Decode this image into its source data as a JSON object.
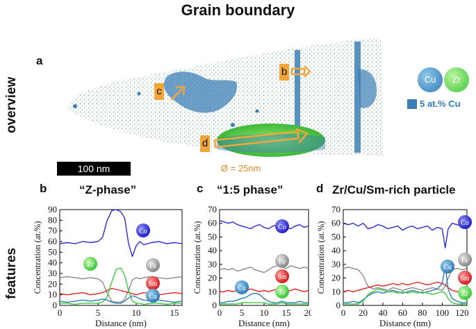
{
  "title": "Grain boundary",
  "row_labels": {
    "overview": "overview",
    "features": "features"
  },
  "overview": {
    "panel_letter": "a",
    "tags": {
      "b": "b",
      "c": "c",
      "d": "d"
    },
    "scale_bar": "100 nm",
    "diameter": "Ø = 25nm",
    "legend": {
      "cu": "Cu",
      "zr": "Zr",
      "iso": "5 at.% Cu"
    },
    "colors": {
      "cu": "#3d7fb5",
      "zr": "#5ed14a",
      "tag": "#f2a53a",
      "arrow": "#f2a53a"
    }
  },
  "panels": [
    {
      "letter": "b",
      "title": "“Z-phase”"
    },
    {
      "letter": "c",
      "title": "“1:5 phase”"
    },
    {
      "letter": "d",
      "title": "Zr/Cu/Sm-rich particle"
    }
  ],
  "chart_data": [
    {
      "type": "line",
      "title": "“Z-phase”",
      "xlabel": "Distance (nm)",
      "ylabel": "Concentration (at.%)",
      "xlim": [
        0,
        16
      ],
      "ylim": [
        0,
        90
      ],
      "xticks": [
        0,
        5,
        10,
        15
      ],
      "yticks": [
        0,
        10,
        20,
        30,
        40,
        50,
        60,
        70,
        80,
        90
      ],
      "series": [
        {
          "name": "Co",
          "color": "#2a2ad9",
          "x": [
            0,
            1,
            2,
            3,
            4,
            5,
            5.6,
            6.2,
            6.8,
            7.4,
            8,
            8.5,
            9,
            9.5,
            10,
            10.5,
            11,
            12,
            13,
            14,
            15,
            16
          ],
          "values": [
            58,
            59,
            58,
            60,
            59,
            60,
            64,
            80,
            89,
            90,
            88,
            82,
            58,
            46,
            56,
            60,
            57,
            59,
            60,
            58,
            59,
            58
          ]
        },
        {
          "name": "Fe",
          "color": "#8a8a8a",
          "x": [
            0,
            1,
            2,
            3,
            4,
            5,
            5.6,
            6.2,
            6.8,
            7.4,
            8,
            8.5,
            9,
            9.5,
            10,
            10.5,
            11,
            12,
            13,
            14,
            15,
            16
          ],
          "values": [
            26,
            27,
            26,
            25,
            26,
            25,
            22,
            12,
            4,
            3,
            3,
            6,
            14,
            24,
            26,
            25,
            26,
            27,
            26,
            25,
            26,
            27
          ]
        },
        {
          "name": "Sm",
          "color": "#e02020",
          "x": [
            0,
            1,
            2,
            3,
            4,
            5,
            5.6,
            6.2,
            6.8,
            7.4,
            8,
            8.5,
            9,
            9.5,
            10,
            10.5,
            11,
            12,
            13,
            14,
            15,
            16
          ],
          "values": [
            11,
            10,
            11,
            12,
            10,
            11,
            12,
            14,
            16,
            15,
            14,
            13,
            12,
            11,
            10,
            11,
            12,
            11,
            10,
            11,
            12,
            11
          ]
        },
        {
          "name": "Zr",
          "color": "#3cc83c",
          "x": [
            0,
            1,
            2,
            3,
            4,
            5,
            5.6,
            6.2,
            6.8,
            7.4,
            8,
            8.5,
            9,
            9.5,
            10,
            10.5,
            11,
            12,
            13,
            14,
            15,
            16
          ],
          "values": [
            2,
            2,
            1,
            2,
            2,
            2,
            3,
            8,
            22,
            34,
            35,
            28,
            14,
            4,
            2,
            2,
            1,
            2,
            2,
            1,
            2,
            2
          ]
        },
        {
          "name": "Cu",
          "color": "#2f7bb8",
          "x": [
            0,
            1,
            2,
            3,
            4,
            5,
            5.6,
            6.2,
            6.8,
            7.4,
            8,
            8.5,
            9,
            9.5,
            10,
            10.5,
            11,
            12,
            13,
            14,
            15,
            16
          ],
          "values": [
            4,
            3,
            4,
            5,
            4,
            5,
            6,
            5,
            3,
            2,
            2,
            4,
            7,
            9,
            8,
            6,
            5,
            4,
            5,
            4,
            3,
            4
          ]
        }
      ],
      "badges": [
        "Co",
        "Zr",
        "Fe",
        "Sm",
        "Cu"
      ]
    },
    {
      "type": "line",
      "title": "“1:5 phase”",
      "xlabel": "Distance (nm)",
      "ylabel": "Concentration (at.%)",
      "xlim": [
        0,
        20
      ],
      "ylim": [
        0,
        70
      ],
      "xticks": [
        0,
        5,
        10,
        15,
        20
      ],
      "yticks": [
        0,
        10,
        20,
        30,
        40,
        50,
        60,
        70
      ],
      "series": [
        {
          "name": "Co",
          "color": "#2a2ad9",
          "x": [
            0,
            1,
            2,
            3,
            4,
            5,
            6,
            7,
            8,
            9,
            10,
            11,
            12,
            13,
            14,
            15,
            16,
            17,
            18,
            19,
            20
          ],
          "values": [
            62,
            61,
            60,
            61,
            59,
            58,
            57,
            56,
            58,
            59,
            57,
            56,
            58,
            59,
            58,
            57,
            56,
            58,
            59,
            57,
            58
          ]
        },
        {
          "name": "Fe",
          "color": "#8a8a8a",
          "x": [
            0,
            1,
            2,
            3,
            4,
            5,
            6,
            7,
            8,
            9,
            10,
            11,
            12,
            13,
            14,
            15,
            16,
            17,
            18,
            19,
            20
          ],
          "values": [
            26,
            27,
            26,
            27,
            25,
            26,
            27,
            28,
            26,
            25,
            24,
            26,
            28,
            29,
            28,
            27,
            29,
            28,
            27,
            28,
            27
          ]
        },
        {
          "name": "Sm",
          "color": "#e02020",
          "x": [
            0,
            1,
            2,
            3,
            4,
            5,
            6,
            7,
            8,
            9,
            10,
            11,
            12,
            13,
            14,
            15,
            16,
            17,
            18,
            19,
            20
          ],
          "values": [
            10,
            10,
            11,
            10,
            11,
            10,
            11,
            12,
            11,
            10,
            11,
            10,
            11,
            12,
            11,
            10,
            11,
            12,
            11,
            10,
            11
          ]
        },
        {
          "name": "Cu",
          "color": "#2f7bb8",
          "x": [
            0,
            1,
            2,
            3,
            4,
            5,
            6,
            7,
            8,
            9,
            10,
            11,
            12,
            13,
            14,
            15,
            16,
            17,
            18,
            19,
            20
          ],
          "values": [
            2,
            2,
            3,
            3,
            4,
            5,
            6,
            8,
            9,
            8,
            5,
            3,
            2,
            2,
            3,
            2,
            2,
            2,
            3,
            2,
            2
          ]
        },
        {
          "name": "Zr",
          "color": "#3cc83c",
          "x": [
            0,
            1,
            2,
            3,
            4,
            5,
            6,
            7,
            8,
            9,
            10,
            11,
            12,
            13,
            14,
            15,
            16,
            17,
            18,
            19,
            20
          ],
          "values": [
            1,
            1,
            1,
            1,
            1,
            2,
            2,
            2,
            2,
            2,
            2,
            1,
            1,
            1,
            2,
            1,
            1,
            1,
            1,
            1,
            1
          ]
        }
      ],
      "badges": [
        "Co",
        "Fe",
        "Sm",
        "Cu",
        "Zr"
      ]
    },
    {
      "type": "line",
      "title": "Zr/Cu/Sm-rich particle",
      "xlabel": "Distance (nm)",
      "ylabel": "Concentration (at.%)",
      "xlim": [
        0,
        125
      ],
      "ylim": [
        0,
        70
      ],
      "xticks": [
        0,
        20,
        40,
        60,
        80,
        100,
        120
      ],
      "yticks": [
        0,
        10,
        20,
        30,
        40,
        50,
        60,
        70
      ],
      "series": [
        {
          "name": "Co",
          "color": "#2a2ad9",
          "x": [
            0,
            5,
            10,
            15,
            20,
            25,
            30,
            35,
            40,
            45,
            50,
            55,
            60,
            65,
            70,
            75,
            80,
            85,
            90,
            95,
            100,
            103,
            106,
            110,
            115,
            120,
            125
          ],
          "values": [
            60,
            59,
            60,
            58,
            60,
            56,
            57,
            59,
            58,
            56,
            57,
            58,
            55,
            57,
            58,
            56,
            57,
            58,
            55,
            57,
            56,
            42,
            56,
            60,
            59,
            58,
            60
          ]
        },
        {
          "name": "Fe",
          "color": "#8a8a8a",
          "x": [
            0,
            5,
            10,
            15,
            20,
            25,
            30,
            35,
            40,
            45,
            50,
            55,
            60,
            65,
            70,
            75,
            80,
            85,
            90,
            95,
            100,
            103,
            106,
            110,
            115,
            120,
            125
          ],
          "values": [
            27,
            28,
            27,
            26,
            22,
            14,
            12,
            13,
            12,
            11,
            13,
            12,
            11,
            12,
            13,
            12,
            11,
            12,
            13,
            12,
            11,
            14,
            20,
            26,
            27,
            26,
            27
          ]
        },
        {
          "name": "Sm",
          "color": "#e02020",
          "x": [
            0,
            5,
            10,
            15,
            20,
            25,
            30,
            35,
            40,
            45,
            50,
            55,
            60,
            65,
            70,
            75,
            80,
            85,
            90,
            95,
            100,
            103,
            106,
            110,
            115,
            120,
            125
          ],
          "values": [
            10,
            11,
            10,
            11,
            12,
            13,
            14,
            15,
            14,
            15,
            16,
            15,
            16,
            15,
            16,
            17,
            16,
            15,
            16,
            17,
            16,
            15,
            13,
            11,
            10,
            11,
            10
          ]
        },
        {
          "name": "Cu",
          "color": "#2f7bb8",
          "x": [
            0,
            5,
            10,
            15,
            20,
            25,
            30,
            35,
            40,
            45,
            50,
            55,
            60,
            65,
            70,
            75,
            80,
            85,
            90,
            95,
            100,
            103,
            106,
            110,
            115,
            120,
            125
          ],
          "values": [
            2,
            2,
            3,
            2,
            4,
            7,
            9,
            10,
            9,
            10,
            11,
            10,
            9,
            10,
            11,
            10,
            9,
            10,
            11,
            12,
            16,
            29,
            12,
            5,
            3,
            2,
            2
          ]
        },
        {
          "name": "Zr",
          "color": "#3cc83c",
          "x": [
            0,
            5,
            10,
            15,
            20,
            25,
            30,
            35,
            40,
            45,
            50,
            55,
            60,
            65,
            70,
            75,
            80,
            85,
            90,
            95,
            100,
            103,
            106,
            110,
            115,
            120,
            125
          ],
          "values": [
            1,
            1,
            1,
            1,
            3,
            8,
            10,
            12,
            11,
            10,
            10,
            9,
            10,
            9,
            10,
            9,
            10,
            9,
            8,
            9,
            10,
            9,
            5,
            2,
            1,
            1,
            1
          ]
        }
      ],
      "badges": [
        "Co",
        "Fe",
        "Cu",
        "Sm",
        "Zr"
      ]
    }
  ]
}
